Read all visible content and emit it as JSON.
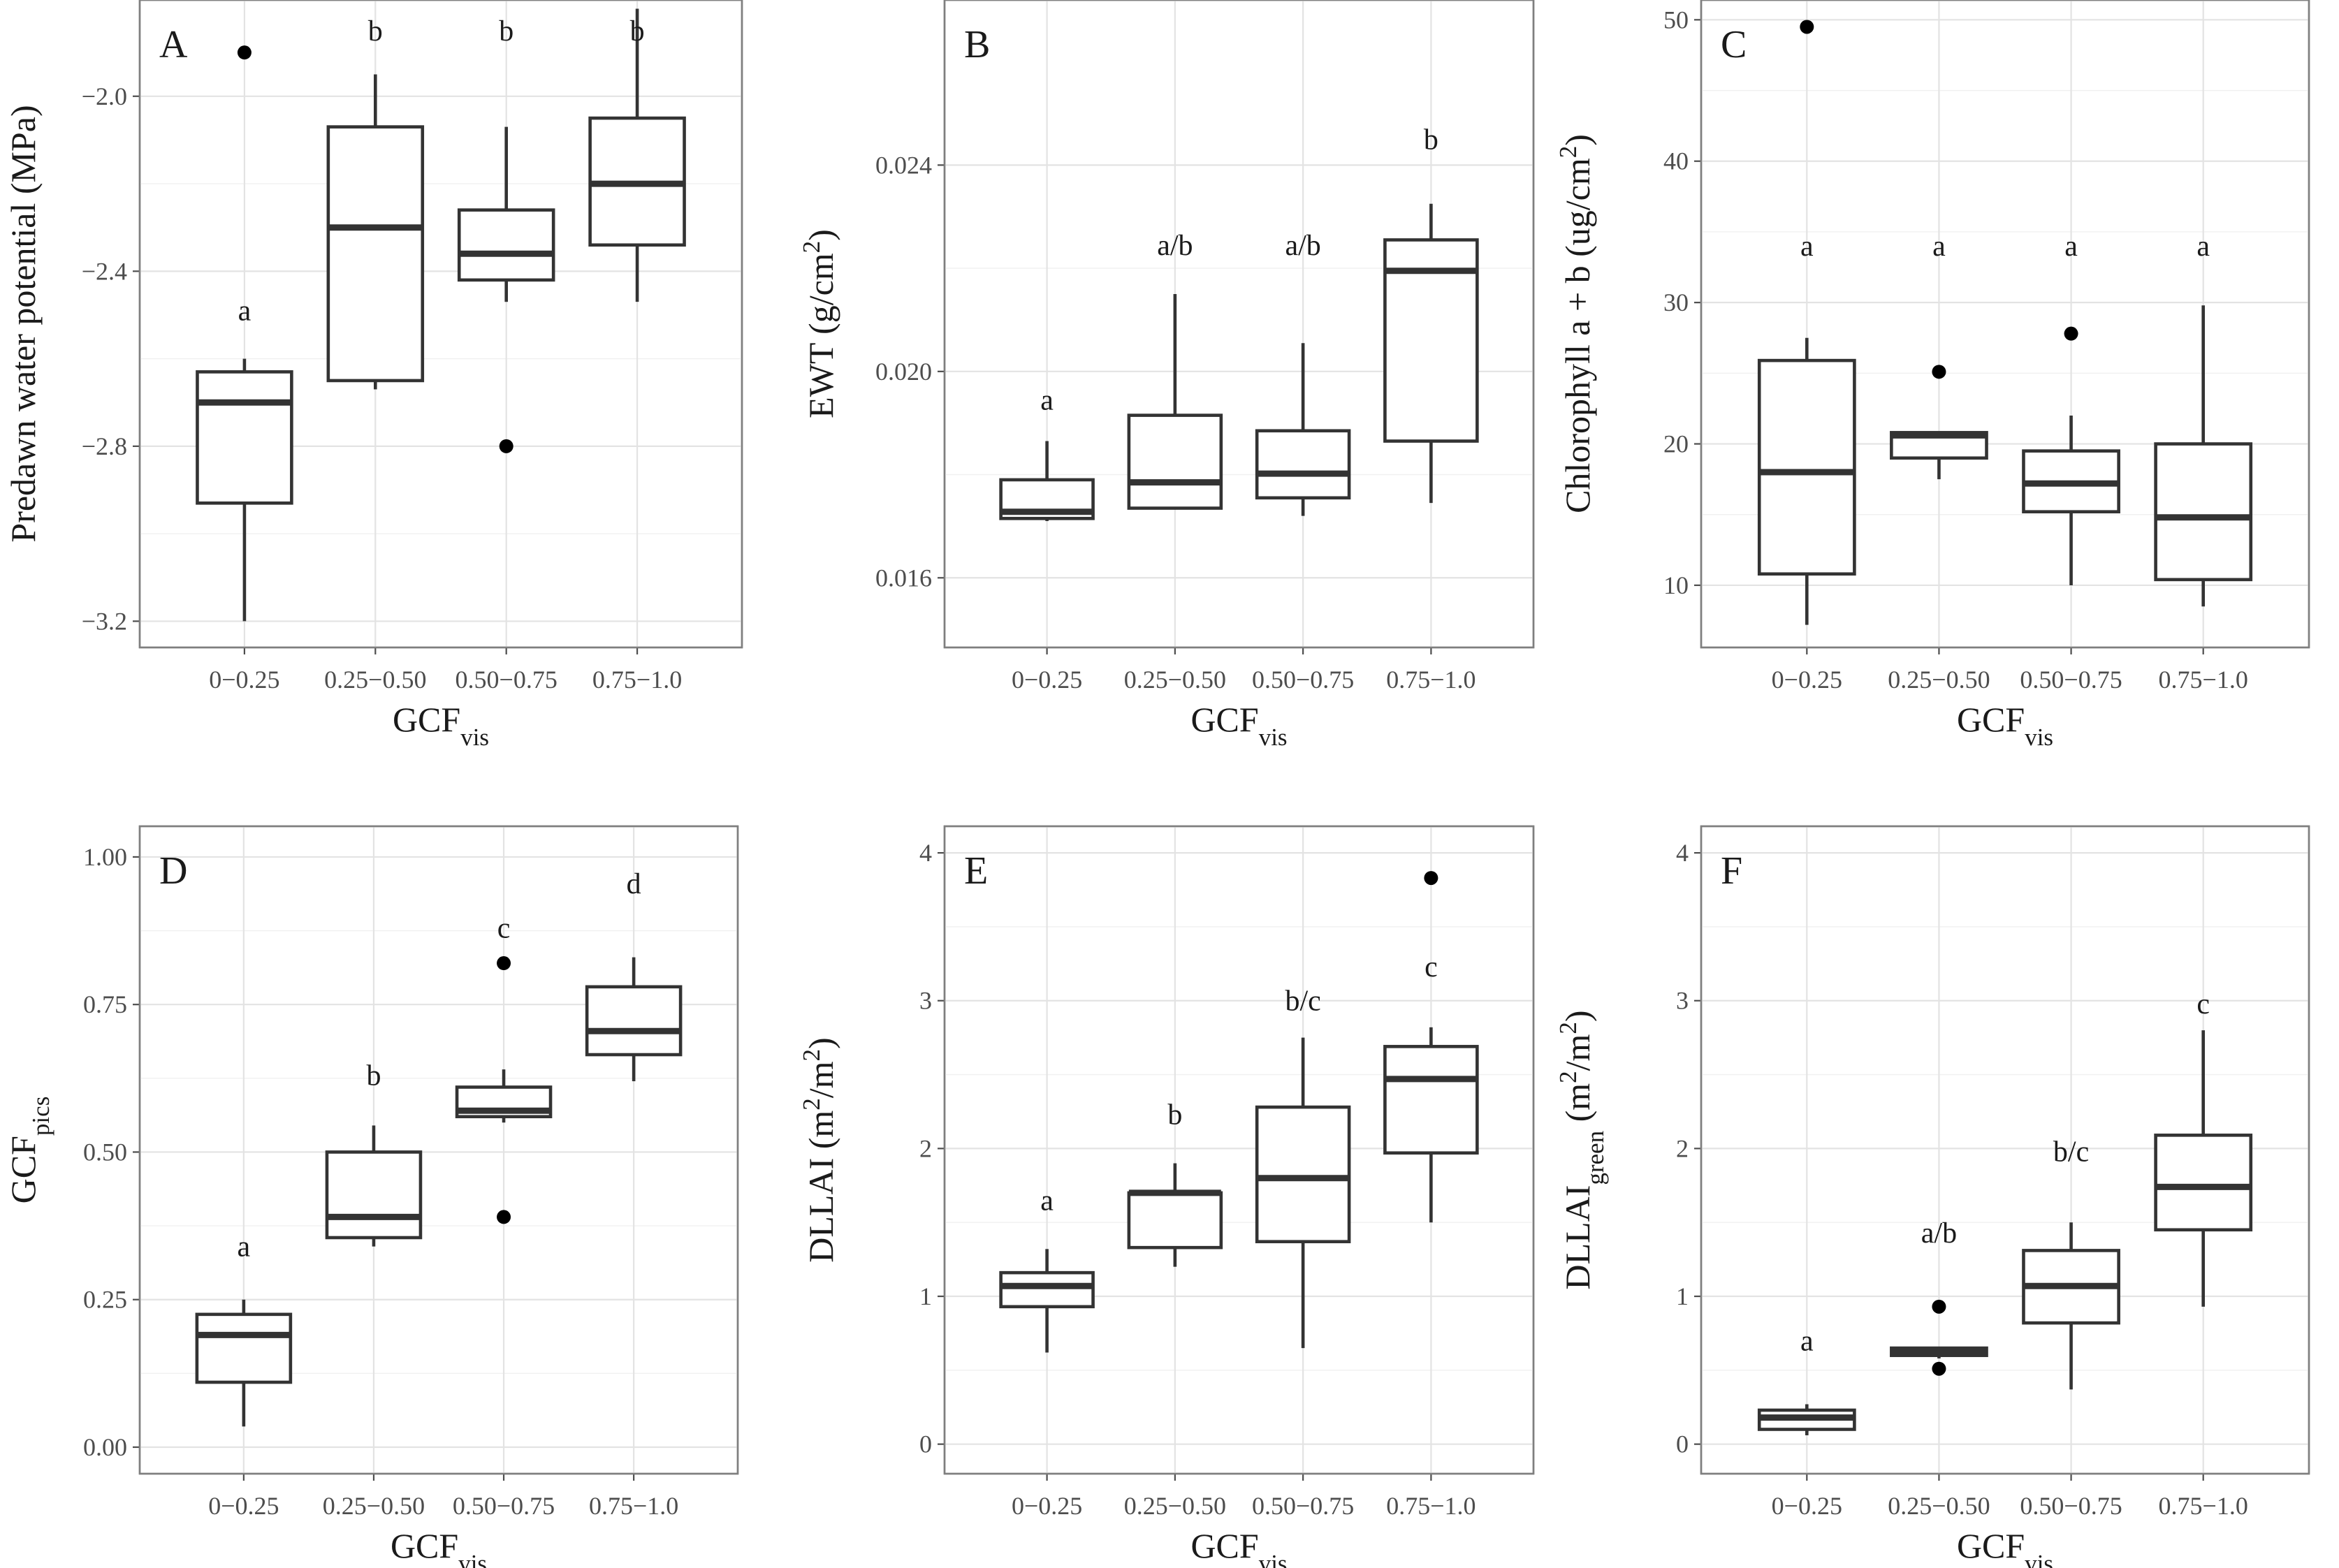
{
  "figure": {
    "x_title": "GCF",
    "x_title_sub": "vis"
  },
  "chart_data": [
    {
      "type": "box",
      "panel": "A",
      "ylabel": "Predawn water potential (MPa)",
      "ylim": [
        -3.26,
        -1.78
      ],
      "yticks": [
        -3.2,
        -2.8,
        -2.4,
        -2.0
      ],
      "ytick_labels": [
        "−3.2",
        "−2.8",
        "−2.4",
        "−2.0"
      ],
      "categories": [
        "0−0.25",
        "0.25−0.50",
        "0.50−0.75",
        "0.75−1.0"
      ],
      "boxes": [
        {
          "low": -3.2,
          "q1": -2.93,
          "median": -2.7,
          "q3": -2.63,
          "high": -2.6,
          "outliers": [
            -1.9
          ],
          "letter": "a",
          "letter_y": -2.49
        },
        {
          "low": -2.67,
          "q1": -2.65,
          "median": -2.3,
          "q3": -2.07,
          "high": -1.95,
          "outliers": [],
          "letter": "b",
          "letter_y": -1.85
        },
        {
          "low": -2.47,
          "q1": -2.42,
          "median": -2.36,
          "q3": -2.26,
          "high": -2.07,
          "outliers": [
            -2.8
          ],
          "letter": "b",
          "letter_y": -1.85
        },
        {
          "low": -2.47,
          "q1": -2.34,
          "median": -2.2,
          "q3": -2.05,
          "high": -1.8,
          "outliers": [],
          "letter": "b",
          "letter_y": -1.85
        }
      ]
    },
    {
      "type": "box",
      "panel": "B",
      "ylabel": "EWT (g/cm²)",
      "ylim": [
        0.01465,
        0.0272
      ],
      "yticks": [
        0.016,
        0.02,
        0.024
      ],
      "ytick_labels": [
        "0.016",
        "0.020",
        "0.024"
      ],
      "categories": [
        "0−0.25",
        "0.25−0.50",
        "0.50−0.75",
        "0.75−1.0"
      ],
      "boxes": [
        {
          "low": 0.0171,
          "q1": 0.01715,
          "median": 0.01728,
          "q3": 0.0179,
          "high": 0.01865,
          "outliers": [],
          "letter": "a",
          "letter_y": 0.01945
        },
        {
          "low": 0.01735,
          "q1": 0.01735,
          "median": 0.01785,
          "q3": 0.01915,
          "high": 0.0215,
          "outliers": [],
          "letter": "a/b",
          "letter_y": 0.02245
        },
        {
          "low": 0.0172,
          "q1": 0.01755,
          "median": 0.01802,
          "q3": 0.01885,
          "high": 0.02055,
          "outliers": [],
          "letter": "a/b",
          "letter_y": 0.02245
        },
        {
          "low": 0.01745,
          "q1": 0.01865,
          "median": 0.02195,
          "q3": 0.02255,
          "high": 0.02325,
          "outliers": [],
          "letter": "b",
          "letter_y": 0.0245
        }
      ]
    },
    {
      "type": "box",
      "panel": "C",
      "ylabel": "Chlorophyll a + b (ug/cm²)",
      "ylim": [
        5.6,
        51.4
      ],
      "yticks": [
        10,
        20,
        30,
        40,
        50
      ],
      "ytick_labels": [
        "10",
        "20",
        "30",
        "40",
        "50"
      ],
      "categories": [
        "0−0.25",
        "0.25−0.50",
        "0.50−0.75",
        "0.75−1.0"
      ],
      "boxes": [
        {
          "low": 7.2,
          "q1": 10.8,
          "median": 18.0,
          "q3": 25.9,
          "high": 27.5,
          "outliers": [
            49.5
          ],
          "letter": "a",
          "letter_y": 34.0
        },
        {
          "low": 17.5,
          "q1": 19.0,
          "median": 20.6,
          "q3": 20.8,
          "high": 20.8,
          "outliers": [
            25.1
          ],
          "letter": "a",
          "letter_y": 34.0
        },
        {
          "low": 10.0,
          "q1": 15.2,
          "median": 17.2,
          "q3": 19.5,
          "high": 22.0,
          "outliers": [
            27.8
          ],
          "letter": "a",
          "letter_y": 34.0
        },
        {
          "low": 8.5,
          "q1": 10.4,
          "median": 14.8,
          "q3": 20.0,
          "high": 29.8,
          "outliers": [],
          "letter": "a",
          "letter_y": 34.0
        }
      ]
    },
    {
      "type": "box",
      "panel": "D",
      "ylabel": "GCF",
      "ylabel_sub": "pics",
      "ylim": [
        -0.045,
        1.052
      ],
      "yticks": [
        0.0,
        0.25,
        0.5,
        0.75,
        1.0
      ],
      "ytick_labels": [
        "0.00",
        "0.25",
        "0.50",
        "0.75",
        "1.00"
      ],
      "categories": [
        "0−0.25",
        "0.25−0.50",
        "0.50−0.75",
        "0.75−1.0"
      ],
      "boxes": [
        {
          "low": 0.035,
          "q1": 0.11,
          "median": 0.19,
          "q3": 0.225,
          "high": 0.25,
          "outliers": [],
          "letter": "a",
          "letter_y": 0.34
        },
        {
          "low": 0.34,
          "q1": 0.355,
          "median": 0.39,
          "q3": 0.5,
          "high": 0.545,
          "outliers": [],
          "letter": "b",
          "letter_y": 0.63
        },
        {
          "low": 0.55,
          "q1": 0.56,
          "median": 0.57,
          "q3": 0.61,
          "high": 0.64,
          "outliers": [
            0.82,
            0.39
          ],
          "letter": "c",
          "letter_y": 0.88
        },
        {
          "low": 0.62,
          "q1": 0.665,
          "median": 0.705,
          "q3": 0.78,
          "high": 0.83,
          "outliers": [],
          "letter": "d",
          "letter_y": 0.955
        }
      ]
    },
    {
      "type": "box",
      "panel": "E",
      "ylabel": "DLLAI (m²/m²)",
      "ylim": [
        -0.2,
        4.18
      ],
      "yticks": [
        0,
        1,
        2,
        3,
        4
      ],
      "ytick_labels": [
        "0",
        "1",
        "2",
        "3",
        "4"
      ],
      "categories": [
        "0−0.25",
        "0.25−0.50",
        "0.50−0.75",
        "0.75−1.0"
      ],
      "boxes": [
        {
          "low": 0.62,
          "q1": 0.93,
          "median": 1.07,
          "q3": 1.16,
          "high": 1.32,
          "outliers": [],
          "letter": "a",
          "letter_y": 1.65
        },
        {
          "low": 1.2,
          "q1": 1.33,
          "median": 1.7,
          "q3": 1.7,
          "high": 1.9,
          "outliers": [],
          "letter": "b",
          "letter_y": 2.23
        },
        {
          "low": 0.65,
          "q1": 1.37,
          "median": 1.8,
          "q3": 2.28,
          "high": 2.75,
          "outliers": [],
          "letter": "b/c",
          "letter_y": 3.0
        },
        {
          "low": 1.5,
          "q1": 1.97,
          "median": 2.47,
          "q3": 2.69,
          "high": 2.82,
          "outliers": [
            3.83
          ],
          "letter": "c",
          "letter_y": 3.23
        }
      ]
    },
    {
      "type": "box",
      "panel": "F",
      "ylabel": "DLLAI",
      "ylabel_sub": "green",
      "ylabel_suffix": " (m²/m²)",
      "ylim": [
        -0.2,
        4.18
      ],
      "yticks": [
        0,
        1,
        2,
        3,
        4
      ],
      "ytick_labels": [
        "0",
        "1",
        "2",
        "3",
        "4"
      ],
      "categories": [
        "0−0.25",
        "0.25−0.50",
        "0.50−0.75",
        "0.75−1.0"
      ],
      "boxes": [
        {
          "low": 0.06,
          "q1": 0.1,
          "median": 0.18,
          "q3": 0.23,
          "high": 0.27,
          "outliers": [],
          "letter": "a",
          "letter_y": 0.7
        },
        {
          "low": 0.58,
          "q1": 0.6,
          "median": 0.62,
          "q3": 0.65,
          "high": 0.65,
          "outliers": [
            0.93,
            0.51
          ],
          "letter": "a/b",
          "letter_y": 1.43
        },
        {
          "low": 0.37,
          "q1": 0.82,
          "median": 1.07,
          "q3": 1.31,
          "high": 1.5,
          "outliers": [],
          "letter": "b/c",
          "letter_y": 1.98
        },
        {
          "low": 0.93,
          "q1": 1.45,
          "median": 1.74,
          "q3": 2.09,
          "high": 2.8,
          "outliers": [],
          "letter": "c",
          "letter_y": 2.98
        }
      ]
    }
  ]
}
